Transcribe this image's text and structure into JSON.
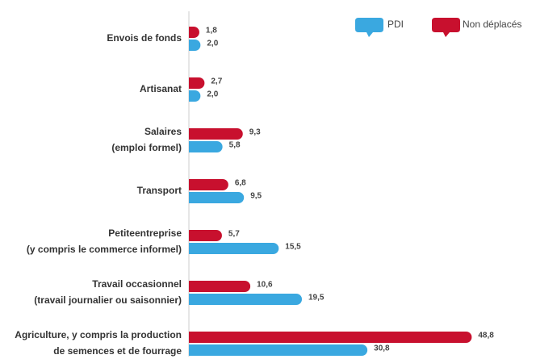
{
  "chart_data": {
    "type": "hbar",
    "categories": [
      "Envois de fonds",
      "Artisanat",
      "Salaires\n(emploi formel)",
      "Transport",
      "Petiteentreprise\n(y compris le commerce informel)",
      "Travail occasionnel\n(travail journalier ou saisonnier)",
      "Agriculture, y compris la production\nde semences et de fourrage"
    ],
    "series": [
      {
        "name": "Non déplacés",
        "color": "#c8102e",
        "values": [
          1.8,
          2.7,
          9.3,
          6.8,
          5.7,
          10.6,
          48.8
        ],
        "value_labels": [
          "1,8",
          "2,7",
          "9,3",
          "6,8",
          "5,7",
          "10,6",
          "48,8"
        ]
      },
      {
        "name": "PDI",
        "color": "#3aa8e0",
        "values": [
          2.0,
          2.0,
          5.8,
          9.5,
          15.5,
          19.5,
          30.8
        ],
        "value_labels": [
          "2,0",
          "2,0",
          "5,8",
          "9,5",
          "15,5",
          "19,5",
          "30,8"
        ]
      }
    ],
    "xlim": [
      0,
      50
    ],
    "legend": "top-right"
  }
}
